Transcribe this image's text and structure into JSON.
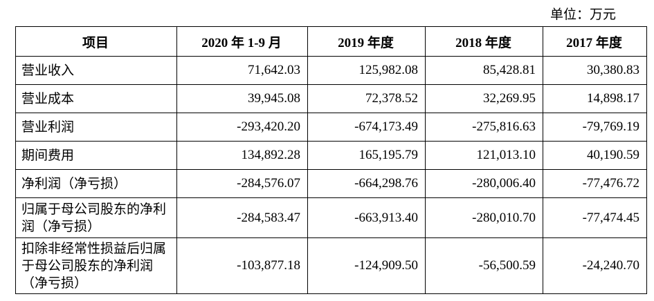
{
  "unit_note": "单位：万元",
  "table": {
    "headers": [
      "项目",
      "2020 年 1-9 月",
      "2019 年度",
      "2018 年度",
      "2017 年度"
    ],
    "rows": [
      {
        "label": "营业收入",
        "values": [
          "71,642.03",
          "125,982.08",
          "85,428.81",
          "30,380.83"
        ]
      },
      {
        "label": "营业成本",
        "values": [
          "39,945.08",
          "72,378.52",
          "32,269.95",
          "14,898.17"
        ]
      },
      {
        "label": "营业利润",
        "values": [
          "-293,420.20",
          "-674,173.49",
          "-275,816.63",
          "-79,769.19"
        ]
      },
      {
        "label": "期间费用",
        "values": [
          "134,892.28",
          "165,195.79",
          "121,013.10",
          "40,190.59"
        ]
      },
      {
        "label": "净利润（净亏损）",
        "values": [
          "-284,576.07",
          "-664,298.76",
          "-280,006.40",
          "-77,476.72"
        ]
      },
      {
        "label": "归属于母公司股东的净利润（净亏损）",
        "values": [
          "-284,583.47",
          "-663,913.40",
          "-280,010.70",
          "-77,474.45"
        ]
      },
      {
        "label": "扣除非经常性损益后归属于母公司股东的净利润（净亏损）",
        "values": [
          "-103,877.18",
          "-124,909.50",
          "-56,500.59",
          "-24,240.70"
        ]
      }
    ]
  }
}
